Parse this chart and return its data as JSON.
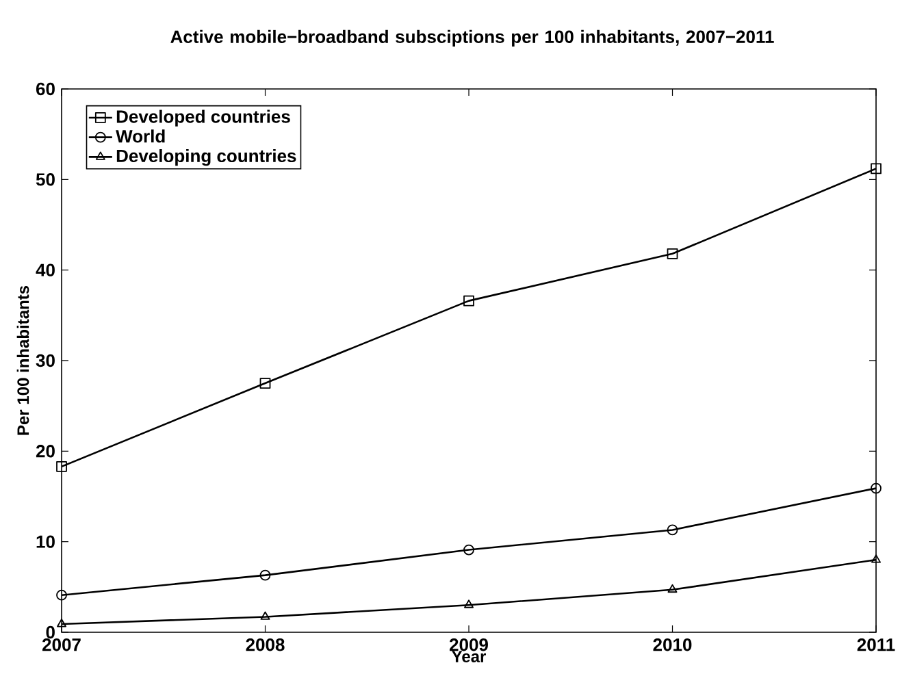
{
  "chart_data": {
    "type": "line",
    "title": "Active mobile−broadband subsciptions per 100 inhabitants, 2007−2011",
    "xlabel": "Year",
    "ylabel": "Per 100 inhabitants",
    "x": [
      2007,
      2008,
      2009,
      2010,
      2011
    ],
    "series": [
      {
        "name": "Developed countries",
        "color": "#000000",
        "marker": "square",
        "values": [
          18.3,
          27.5,
          36.6,
          41.8,
          51.2
        ]
      },
      {
        "name": "World",
        "color": "#000000",
        "marker": "circle",
        "values": [
          4.1,
          6.3,
          9.1,
          11.3,
          15.9
        ]
      },
      {
        "name": "Developing countries",
        "color": "#000000",
        "marker": "triangle",
        "values": [
          0.9,
          1.7,
          3.0,
          4.7,
          8.0
        ]
      }
    ],
    "xlim": [
      2007,
      2011
    ],
    "ylim": [
      0,
      60
    ],
    "xticks": [
      2007,
      2008,
      2009,
      2010,
      2011
    ],
    "yticks": [
      0,
      10,
      20,
      30,
      40,
      50,
      60
    ],
    "legend": "top left",
    "line_style": "solid"
  }
}
